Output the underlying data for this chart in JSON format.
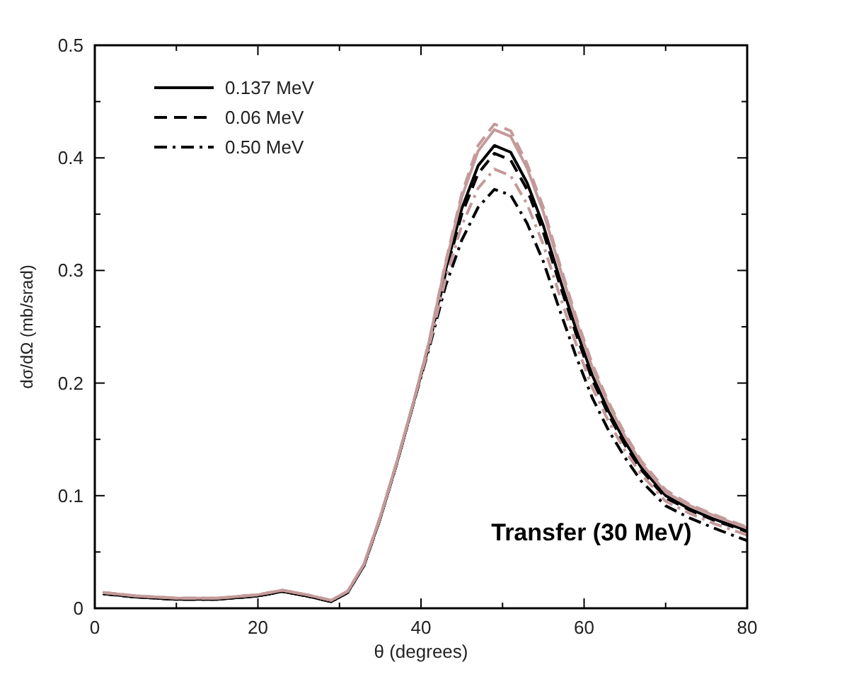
{
  "chart_data": {
    "type": "line",
    "xlabel": "θ (degrees)",
    "ylabel": "dσ/dΩ (mb/srad)",
    "annotations": [
      "Transfer (30 MeV)"
    ],
    "x": [
      1,
      5,
      10,
      15,
      20,
      23,
      26,
      29,
      31,
      33,
      35,
      37,
      39,
      41,
      43,
      45,
      47,
      49,
      51,
      53,
      55,
      57,
      59,
      61,
      63,
      65,
      67,
      70,
      73,
      76,
      80
    ],
    "xlim": [
      0,
      80
    ],
    "xticks": [
      0,
      {
        "value": 10,
        "label": null
      },
      20,
      {
        "value": 30,
        "label": null
      },
      40,
      {
        "value": 50,
        "label": null
      },
      60,
      {
        "value": 70,
        "label": null
      },
      80
    ],
    "ylim": [
      0,
      0.5
    ],
    "yticks": [
      0,
      {
        "value": 0.05,
        "label": null
      },
      0.1,
      {
        "value": 0.15,
        "label": null
      },
      0.2,
      {
        "value": 0.25,
        "label": null
      },
      0.3,
      {
        "value": 0.35,
        "label": null
      },
      0.4,
      {
        "value": 0.45,
        "label": null
      },
      0.5
    ],
    "legend": "top left",
    "grid": false,
    "series": [
      {
        "name": "0.137 MeV",
        "color": "#000000",
        "line_style": "solid",
        "values": [
          0.013,
          0.01,
          0.008,
          0.008,
          0.011,
          0.015,
          0.011,
          0.006,
          0.014,
          0.038,
          0.08,
          0.128,
          0.18,
          0.235,
          0.3,
          0.355,
          0.393,
          0.411,
          0.405,
          0.378,
          0.34,
          0.293,
          0.248,
          0.207,
          0.175,
          0.148,
          0.125,
          0.1,
          0.088,
          0.079,
          0.069
        ]
      },
      {
        "name": "0.06 MeV",
        "color": "#000000",
        "line_style": "dashed",
        "values": [
          0.013,
          0.01,
          0.008,
          0.008,
          0.011,
          0.015,
          0.011,
          0.006,
          0.014,
          0.038,
          0.08,
          0.128,
          0.18,
          0.234,
          0.297,
          0.35,
          0.386,
          0.404,
          0.398,
          0.372,
          0.334,
          0.288,
          0.244,
          0.203,
          0.172,
          0.145,
          0.123,
          0.098,
          0.087,
          0.078,
          0.068
        ]
      },
      {
        "name": "0.50 MeV",
        "color": "#000000",
        "line_style": "dashdot",
        "values": [
          0.013,
          0.01,
          0.008,
          0.008,
          0.011,
          0.015,
          0.011,
          0.006,
          0.014,
          0.038,
          0.08,
          0.128,
          0.18,
          0.231,
          0.286,
          0.327,
          0.356,
          0.372,
          0.367,
          0.342,
          0.308,
          0.265,
          0.224,
          0.187,
          0.158,
          0.134,
          0.113,
          0.091,
          0.08,
          0.071,
          0.06
        ]
      },
      {
        "color": "#c49a9a",
        "line_style": "solid",
        "values": [
          0.014,
          0.011,
          0.009,
          0.009,
          0.012,
          0.016,
          0.012,
          0.007,
          0.015,
          0.039,
          0.081,
          0.129,
          0.181,
          0.237,
          0.305,
          0.365,
          0.406,
          0.425,
          0.419,
          0.391,
          0.352,
          0.303,
          0.256,
          0.214,
          0.181,
          0.153,
          0.129,
          0.103,
          0.091,
          0.082,
          0.071
        ]
      },
      {
        "color": "#c49a9a",
        "line_style": "dashed",
        "values": [
          0.014,
          0.011,
          0.009,
          0.009,
          0.012,
          0.016,
          0.012,
          0.007,
          0.015,
          0.039,
          0.081,
          0.129,
          0.181,
          0.237,
          0.307,
          0.368,
          0.411,
          0.43,
          0.424,
          0.395,
          0.356,
          0.306,
          0.259,
          0.217,
          0.183,
          0.155,
          0.131,
          0.105,
          0.092,
          0.083,
          0.072
        ]
      },
      {
        "color": "#c49a9a",
        "line_style": "dashdot",
        "values": [
          0.014,
          0.011,
          0.009,
          0.009,
          0.012,
          0.016,
          0.012,
          0.007,
          0.015,
          0.039,
          0.081,
          0.129,
          0.181,
          0.233,
          0.292,
          0.34,
          0.373,
          0.39,
          0.384,
          0.359,
          0.323,
          0.278,
          0.235,
          0.196,
          0.166,
          0.14,
          0.119,
          0.095,
          0.084,
          0.075,
          0.065
        ]
      }
    ]
  }
}
